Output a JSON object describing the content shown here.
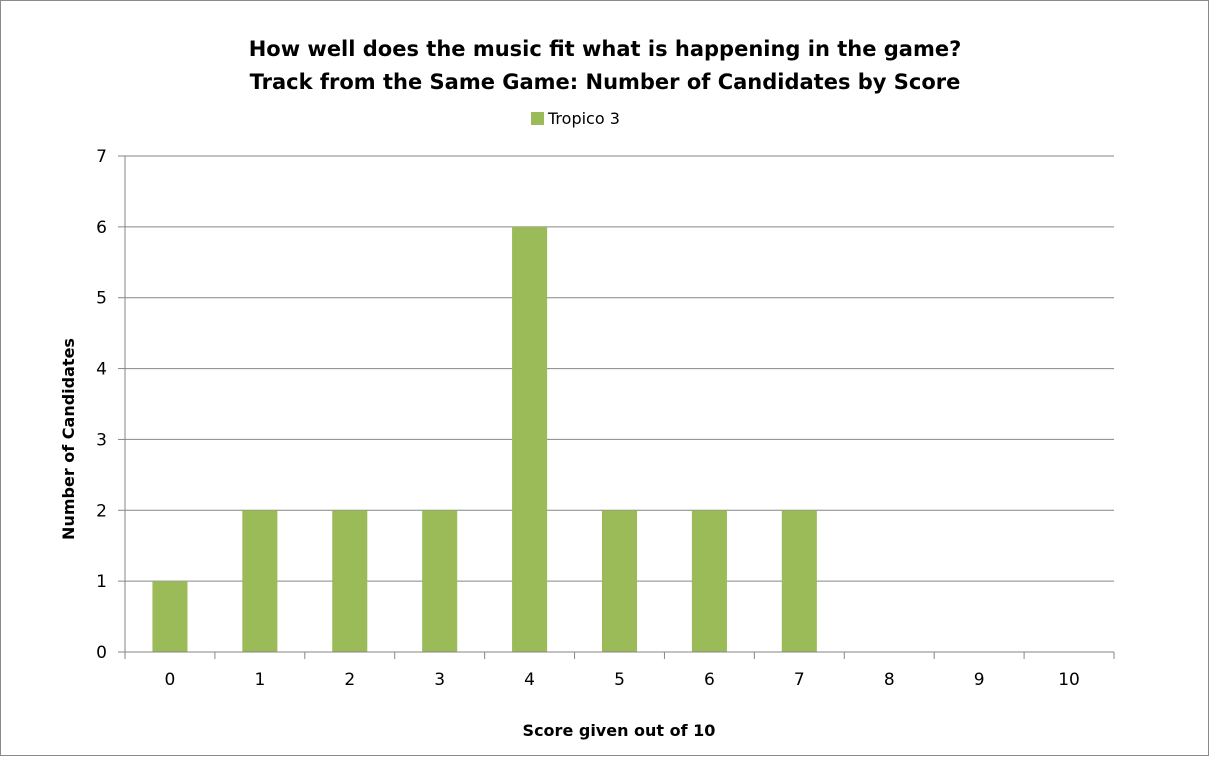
{
  "chart_data": {
    "type": "bar",
    "title": "How well does the music fit what is happening in the game?",
    "subtitle": "Track from the Same Game: Number of Candidates by Score",
    "xlabel": "Score given out of 10",
    "ylabel": "Number of Candidates",
    "categories": [
      "0",
      "1",
      "2",
      "3",
      "4",
      "5",
      "6",
      "7",
      "8",
      "9",
      "10"
    ],
    "series": [
      {
        "name": "Tropico 3",
        "color": "#9bbb59",
        "values": [
          1,
          2,
          2,
          2,
          6,
          2,
          2,
          2,
          0,
          0,
          0
        ]
      }
    ],
    "ylim": [
      0,
      7
    ],
    "yticks": [
      0,
      1,
      2,
      3,
      4,
      5,
      6,
      7
    ],
    "grid": true,
    "legend": "top-center"
  }
}
